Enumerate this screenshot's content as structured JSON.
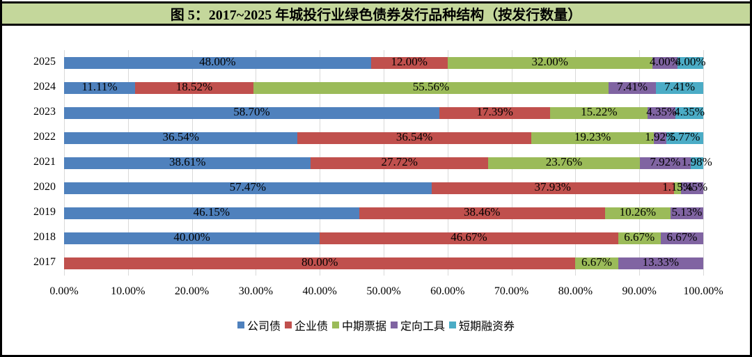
{
  "title": "图 5：2017~2025 年城投行业绿色债券发行品种结构（按发行数量）",
  "chart_data": {
    "type": "bar",
    "orientation": "horizontal",
    "stacked": "percent",
    "title": "图 5：2017~2025 年城投行业绿色债券发行品种结构（按发行数量）",
    "xlabel": "",
    "ylabel": "",
    "xlim": [
      0,
      100
    ],
    "x_ticks": [
      "0.00%",
      "10.00%",
      "20.00%",
      "30.00%",
      "40.00%",
      "50.00%",
      "60.00%",
      "70.00%",
      "80.00%",
      "90.00%",
      "100.00%"
    ],
    "grid": true,
    "legend_position": "bottom",
    "categories": [
      "2025",
      "2024",
      "2023",
      "2022",
      "2021",
      "2020",
      "2019",
      "2018",
      "2017"
    ],
    "series": [
      {
        "name": "公司债",
        "color": "#4f81bd",
        "values": [
          48.0,
          11.11,
          58.7,
          36.54,
          38.61,
          57.47,
          46.15,
          40.0,
          0
        ]
      },
      {
        "name": "企业债",
        "color": "#c0504d",
        "values": [
          12.0,
          18.52,
          17.39,
          36.54,
          27.72,
          37.93,
          38.46,
          46.67,
          80.0
        ]
      },
      {
        "name": "中期票据",
        "color": "#9bbb59",
        "values": [
          32.0,
          55.56,
          15.22,
          19.23,
          23.76,
          1.15,
          10.26,
          6.67,
          6.67
        ]
      },
      {
        "name": "定向工具",
        "color": "#8064a2",
        "values": [
          4.0,
          7.41,
          4.35,
          1.92,
          7.92,
          3.45,
          5.13,
          6.67,
          13.33
        ]
      },
      {
        "name": "短期融资券",
        "color": "#4bacc6",
        "values": [
          4.0,
          7.41,
          4.35,
          5.77,
          1.98,
          0,
          0,
          0,
          0
        ]
      }
    ]
  }
}
